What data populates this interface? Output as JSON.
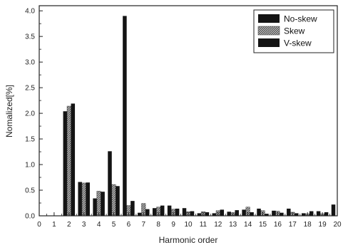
{
  "chart_data": {
    "type": "bar",
    "xlabel": "Harmonic order",
    "ylabel": "Nomalized[%]",
    "xlim": [
      0,
      20
    ],
    "ylim": [
      0,
      4.1
    ],
    "x_ticks": [
      0,
      1,
      2,
      3,
      4,
      5,
      6,
      7,
      8,
      9,
      10,
      11,
      12,
      13,
      14,
      15,
      16,
      17,
      18,
      19,
      20
    ],
    "y_ticks": [
      0.0,
      0.5,
      1.0,
      1.5,
      2.0,
      2.5,
      3.0,
      3.5,
      4.0
    ],
    "y_tick_labels": [
      "0.0",
      "0.5",
      "1.0",
      "1.5",
      "2.0",
      "2.5",
      "3.0",
      "3.5",
      "4.0"
    ],
    "legend_position": "top-right",
    "grid": false,
    "categories": [
      2,
      3,
      4,
      5,
      6,
      7,
      8,
      9,
      10,
      11,
      12,
      13,
      14,
      15,
      16,
      17,
      18,
      19,
      20
    ],
    "series": [
      {
        "name": "No-skew",
        "pattern": "solid",
        "values": [
          2.04,
          0.66,
          0.34,
          1.26,
          3.9,
          0.06,
          0.15,
          0.2,
          0.15,
          0.05,
          0.05,
          0.08,
          0.12,
          0.14,
          0.1,
          0.14,
          0.05,
          0.09,
          0.22
        ]
      },
      {
        "name": "Skew",
        "pattern": "hatched",
        "values": [
          2.14,
          0.64,
          0.48,
          0.61,
          0.2,
          0.24,
          0.17,
          0.13,
          0.08,
          0.08,
          0.1,
          0.06,
          0.17,
          0.1,
          0.09,
          0.07,
          0.04,
          0.04,
          0.0
        ]
      },
      {
        "name": "V-skew",
        "pattern": "solid",
        "values": [
          2.19,
          0.65,
          0.47,
          0.58,
          0.29,
          0.13,
          0.2,
          0.14,
          0.09,
          0.07,
          0.12,
          0.11,
          0.07,
          0.04,
          0.06,
          0.05,
          0.09,
          0.07,
          0.0
        ]
      }
    ],
    "colors": {
      "bar": "#141414",
      "hatch_background": "#b8b8b8",
      "axis": "#222222"
    }
  }
}
